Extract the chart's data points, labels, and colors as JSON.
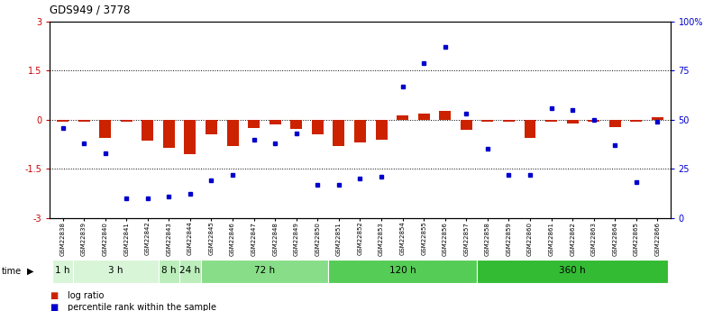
{
  "title": "GDS949 / 3778",
  "samples": [
    "GSM22838",
    "GSM22839",
    "GSM22840",
    "GSM22841",
    "GSM22842",
    "GSM22843",
    "GSM22844",
    "GSM22845",
    "GSM22846",
    "GSM22847",
    "GSM22848",
    "GSM22849",
    "GSM22850",
    "GSM22851",
    "GSM22852",
    "GSM22853",
    "GSM22854",
    "GSM22855",
    "GSM22856",
    "GSM22857",
    "GSM22858",
    "GSM22859",
    "GSM22860",
    "GSM22861",
    "GSM22862",
    "GSM22863",
    "GSM22864",
    "GSM22865",
    "GSM22866"
  ],
  "log_ratio": [
    -0.05,
    -0.05,
    -0.55,
    -0.05,
    -0.65,
    -0.85,
    -1.05,
    -0.45,
    -0.8,
    -0.25,
    -0.15,
    -0.28,
    -0.45,
    -0.8,
    -0.7,
    -0.6,
    0.12,
    0.18,
    0.28,
    -0.3,
    -0.05,
    -0.05,
    -0.55,
    -0.05,
    -0.12,
    -0.06,
    -0.22,
    -0.06,
    0.08
  ],
  "percentile_rank": [
    46,
    38,
    33,
    10,
    10,
    11,
    12,
    19,
    22,
    40,
    38,
    43,
    17,
    17,
    20,
    21,
    67,
    79,
    87,
    53,
    35,
    22,
    22,
    56,
    55,
    50,
    37,
    18,
    49
  ],
  "time_groups": [
    {
      "label": "1 h",
      "start": 0,
      "end": 1,
      "color": "#d8f5d8"
    },
    {
      "label": "3 h",
      "start": 1,
      "end": 5,
      "color": "#d8f5d8"
    },
    {
      "label": "8 h",
      "start": 5,
      "end": 6,
      "color": "#bbeebb"
    },
    {
      "label": "24 h",
      "start": 6,
      "end": 7,
      "color": "#bbeebb"
    },
    {
      "label": "72 h",
      "start": 7,
      "end": 13,
      "color": "#88dd88"
    },
    {
      "label": "120 h",
      "start": 13,
      "end": 20,
      "color": "#55cc55"
    },
    {
      "label": "360 h",
      "start": 20,
      "end": 29,
      "color": "#33bb33"
    }
  ],
  "bar_color": "#cc2200",
  "dot_color": "#0000cc",
  "ylim_left": [
    -3,
    3
  ],
  "ylim_right": [
    0,
    100
  ],
  "yticks_left": [
    -3,
    -1.5,
    0,
    1.5,
    3
  ],
  "yticks_right": [
    0,
    25,
    50,
    75,
    100
  ],
  "hlines": [
    -1.5,
    0,
    1.5
  ],
  "bg_color": "#ffffff"
}
